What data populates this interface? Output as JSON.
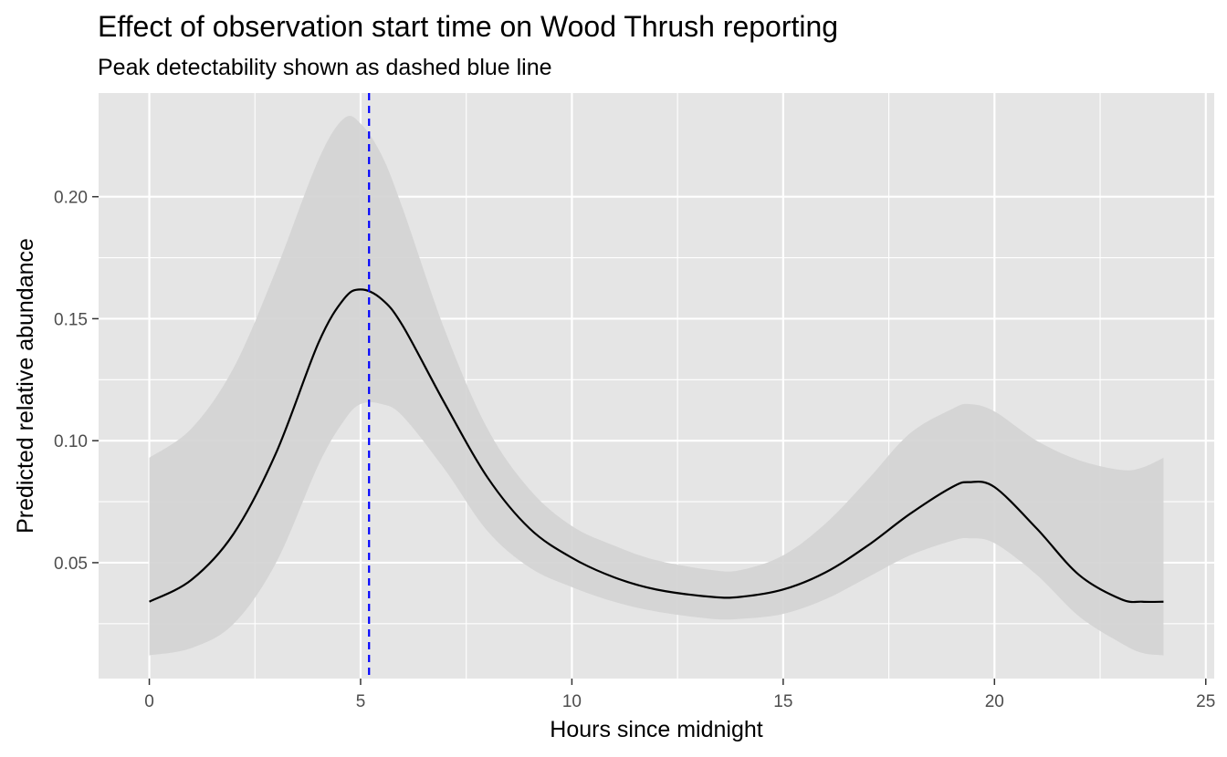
{
  "chart_data": {
    "type": "line",
    "title": "Effect of observation start time on Wood Thrush reporting",
    "subtitle": "Peak detectability shown as dashed blue line",
    "xlabel": "Hours since midnight",
    "ylabel": "Predicted relative abundance",
    "xlim": [
      -1.2,
      25.2
    ],
    "ylim": [
      0.0025,
      0.2425
    ],
    "x_ticks": [
      0,
      5,
      10,
      15,
      20,
      25
    ],
    "x_tick_labels": [
      "0",
      "5",
      "10",
      "15",
      "20",
      "25"
    ],
    "y_ticks": [
      0.05,
      0.1,
      0.15,
      0.2
    ],
    "y_tick_labels": [
      "0.05",
      "0.10",
      "0.15",
      "0.20"
    ],
    "grid": true,
    "panel_background": "#e5e5e5",
    "grid_color": "#ffffff",
    "ribbon_color": "#d3d3d3",
    "line_color": "#000000",
    "peak_line": {
      "x": 5.2,
      "color": "#0000ff",
      "style": "dashed"
    },
    "series": [
      {
        "x": [
          0,
          1,
          2,
          3,
          4,
          4.6,
          5,
          5.5,
          6,
          7,
          8,
          9,
          10,
          11,
          12,
          13.3,
          14,
          15,
          16,
          17,
          18,
          19,
          19.4,
          20,
          21,
          22,
          23,
          23.5,
          24
        ],
        "y": [
          0.034,
          0.043,
          0.062,
          0.095,
          0.14,
          0.158,
          0.162,
          0.158,
          0.147,
          0.115,
          0.085,
          0.064,
          0.052,
          0.044,
          0.039,
          0.036,
          0.036,
          0.039,
          0.046,
          0.057,
          0.07,
          0.081,
          0.083,
          0.081,
          0.064,
          0.045,
          0.035,
          0.034,
          0.034
        ],
        "lower": [
          0.012,
          0.015,
          0.025,
          0.05,
          0.09,
          0.108,
          0.115,
          0.115,
          0.11,
          0.088,
          0.063,
          0.048,
          0.04,
          0.034,
          0.03,
          0.027,
          0.027,
          0.029,
          0.035,
          0.044,
          0.053,
          0.059,
          0.06,
          0.058,
          0.045,
          0.028,
          0.017,
          0.013,
          0.012
        ],
        "upper": [
          0.093,
          0.105,
          0.13,
          0.17,
          0.215,
          0.232,
          0.23,
          0.217,
          0.195,
          0.145,
          0.105,
          0.08,
          0.065,
          0.057,
          0.051,
          0.047,
          0.047,
          0.053,
          0.066,
          0.084,
          0.103,
          0.113,
          0.115,
          0.112,
          0.1,
          0.092,
          0.088,
          0.089,
          0.093
        ]
      }
    ]
  }
}
